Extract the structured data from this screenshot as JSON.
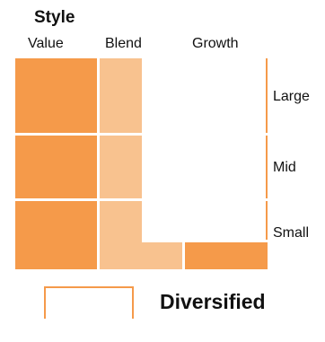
{
  "box": {
    "title": "Style",
    "columns": [
      "Value",
      "Blend",
      "Growth"
    ],
    "rows": [
      "Large",
      "Mid",
      "Small"
    ]
  },
  "legend": {
    "label": "Diversified"
  },
  "colors": {
    "strong": "#f59a4a",
    "light": "#f8c28f",
    "border": "#f59a4a"
  }
}
